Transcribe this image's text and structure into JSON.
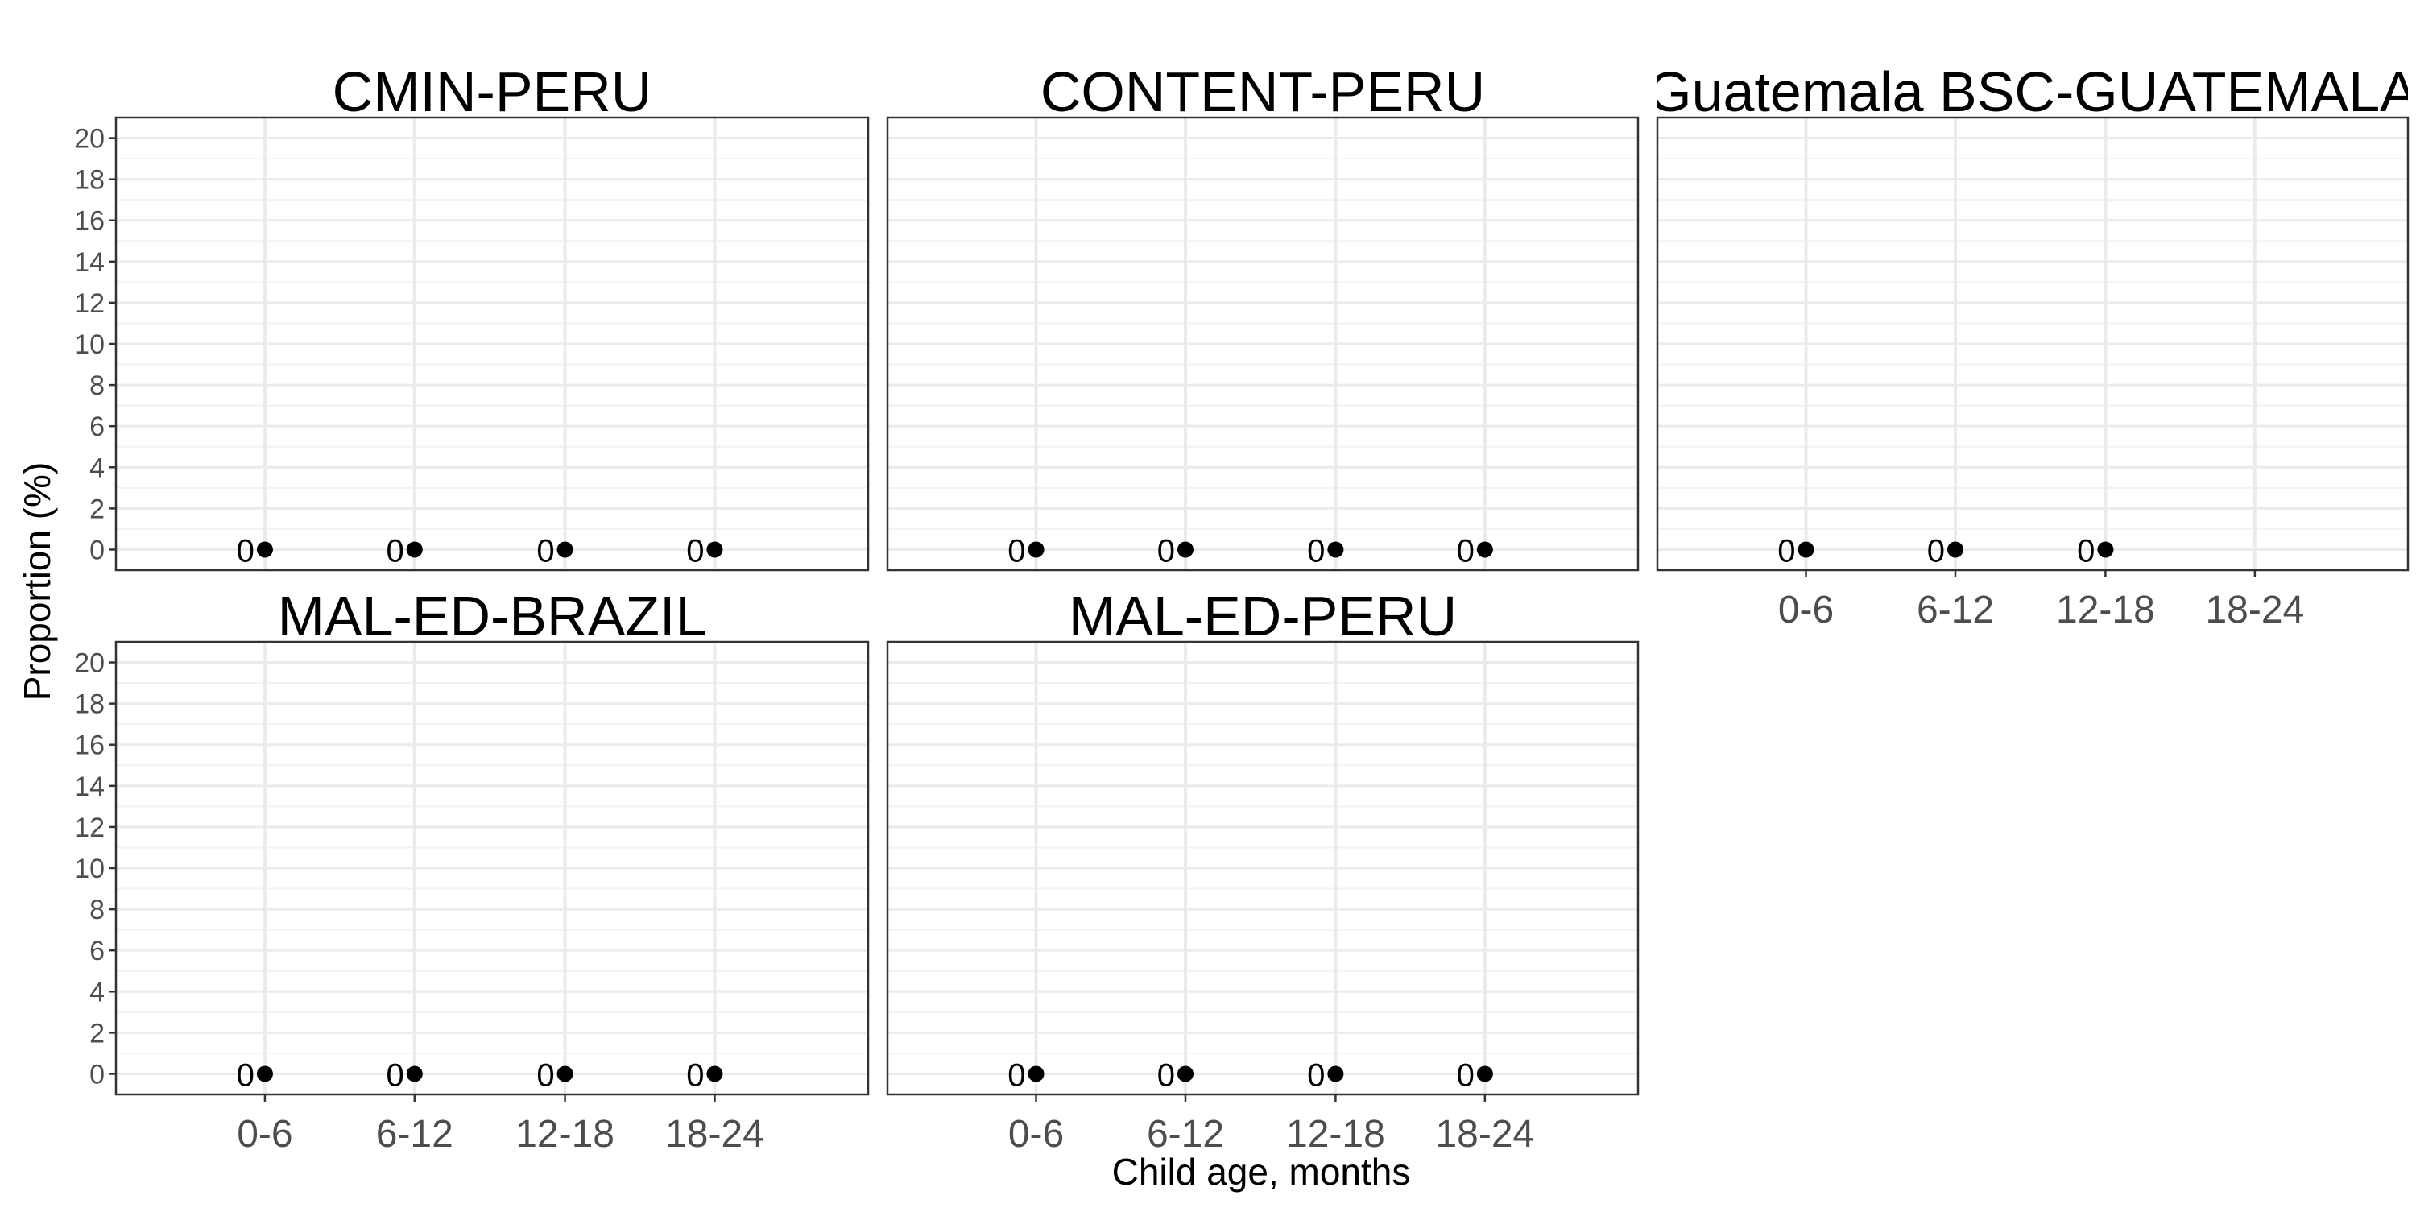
{
  "chart_data": {
    "type": "scatter",
    "xlabel": "Child age, months",
    "ylabel": "Proportion (%)",
    "categories": [
      "0-6",
      "6-12",
      "12-18",
      "18-24"
    ],
    "ylim": [
      -1,
      21
    ],
    "yticks": [
      0,
      2,
      4,
      6,
      8,
      10,
      12,
      14,
      16,
      18,
      20
    ],
    "grid": true,
    "point_color": "#000000",
    "panels": [
      {
        "title": "CMIN-PERU",
        "points": [
          {
            "x": "0-6",
            "y": 0,
            "label": "0"
          },
          {
            "x": "6-12",
            "y": 0,
            "label": "0"
          },
          {
            "x": "12-18",
            "y": 0,
            "label": "0"
          },
          {
            "x": "18-24",
            "y": 0,
            "label": "0"
          }
        ]
      },
      {
        "title": "CONTENT-PERU",
        "points": [
          {
            "x": "0-6",
            "y": 0,
            "label": "0"
          },
          {
            "x": "6-12",
            "y": 0,
            "label": "0"
          },
          {
            "x": "12-18",
            "y": 0,
            "label": "0"
          },
          {
            "x": "18-24",
            "y": 0,
            "label": "0"
          }
        ]
      },
      {
        "title": "Guatemala BSC-GUATEMALA",
        "points": [
          {
            "x": "0-6",
            "y": 0,
            "label": "0"
          },
          {
            "x": "6-12",
            "y": 0,
            "label": "0"
          },
          {
            "x": "12-18",
            "y": 0,
            "label": "0"
          }
        ]
      },
      {
        "title": "MAL-ED-BRAZIL",
        "points": [
          {
            "x": "0-6",
            "y": 0,
            "label": "0"
          },
          {
            "x": "6-12",
            "y": 0,
            "label": "0"
          },
          {
            "x": "12-18",
            "y": 0,
            "label": "0"
          },
          {
            "x": "18-24",
            "y": 0,
            "label": "0"
          }
        ]
      },
      {
        "title": "MAL-ED-PERU",
        "points": [
          {
            "x": "0-6",
            "y": 0,
            "label": "0"
          },
          {
            "x": "6-12",
            "y": 0,
            "label": "0"
          },
          {
            "x": "12-18",
            "y": 0,
            "label": "0"
          },
          {
            "x": "18-24",
            "y": 0,
            "label": "0"
          }
        ]
      }
    ]
  }
}
